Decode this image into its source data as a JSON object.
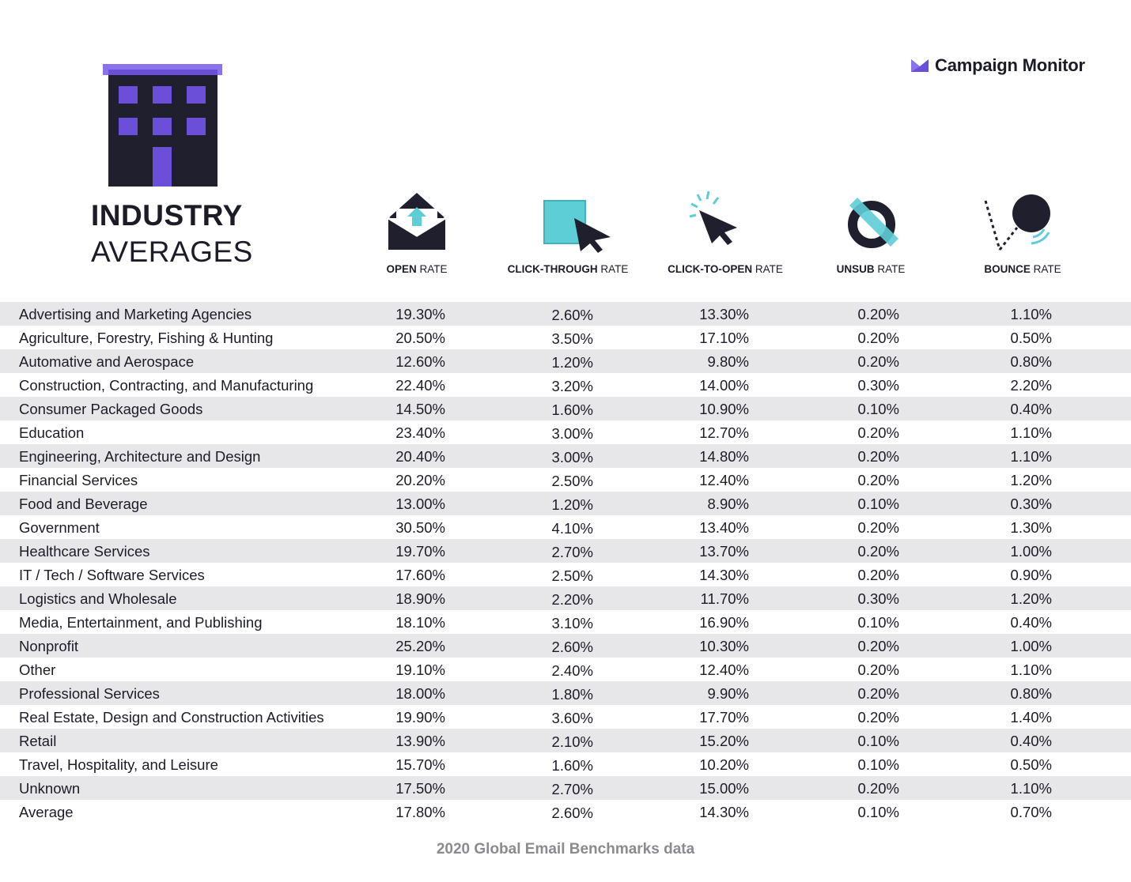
{
  "header": {
    "title_bold": "INDUSTRY",
    "title_light": "AVERAGES",
    "brand": "Campaign Monitor"
  },
  "columns": [
    {
      "bold": "OPEN",
      "rest": " RATE",
      "icon": "envelope-icon"
    },
    {
      "bold": "CLICK-THROUGH",
      "rest": " RATE",
      "icon": "cursor-square-icon"
    },
    {
      "bold": "CLICK-TO-OPEN",
      "rest": " RATE",
      "icon": "click-cursor-icon"
    },
    {
      "bold": "UNSUB",
      "rest": " RATE",
      "icon": "unsubscribe-ring-icon"
    },
    {
      "bold": "BOUNCE",
      "rest": " RATE",
      "icon": "bounce-ball-icon"
    }
  ],
  "colors": {
    "accent": "#6b4fd8",
    "dark": "#1c1c28",
    "teal": "#5dcdd6",
    "stripe": "#e7e7ea"
  },
  "chart_data": {
    "type": "table",
    "title": "INDUSTRY AVERAGES",
    "source": "2020 Global Email Benchmarks data",
    "columns": [
      "OPEN RATE",
      "CLICK-THROUGH RATE",
      "CLICK-TO-OPEN RATE",
      "UNSUB RATE",
      "BOUNCE RATE"
    ],
    "rows": [
      [
        "Advertising and Marketing Agencies",
        "19.30%",
        "2.60%",
        "13.30%",
        "0.20%",
        "1.10%"
      ],
      [
        "Agriculture, Forestry, Fishing & Hunting",
        "20.50%",
        "3.50%",
        "17.10%",
        "0.20%",
        "0.50%"
      ],
      [
        "Automative and Aerospace",
        "12.60%",
        "1.20%",
        "9.80%",
        "0.20%",
        "0.80%"
      ],
      [
        "Construction, Contracting, and Manufacturing",
        "22.40%",
        "3.20%",
        "14.00%",
        "0.30%",
        "2.20%"
      ],
      [
        "Consumer Packaged Goods",
        "14.50%",
        "1.60%",
        "10.90%",
        "0.10%",
        "0.40%"
      ],
      [
        "Education",
        "23.40%",
        "3.00%",
        "12.70%",
        "0.20%",
        "1.10%"
      ],
      [
        "Engineering, Architecture and Design",
        "20.40%",
        "3.00%",
        "14.80%",
        "0.20%",
        "1.10%"
      ],
      [
        "Financial Services",
        "20.20%",
        "2.50%",
        "12.40%",
        "0.20%",
        "1.20%"
      ],
      [
        "Food and Beverage",
        "13.00%",
        "1.20%",
        "8.90%",
        "0.10%",
        "0.30%"
      ],
      [
        "Government",
        "30.50%",
        "4.10%",
        "13.40%",
        "0.20%",
        "1.30%"
      ],
      [
        "Healthcare Services",
        "19.70%",
        "2.70%",
        "13.70%",
        "0.20%",
        "1.00%"
      ],
      [
        "IT / Tech / Software Services",
        "17.60%",
        "2.50%",
        "14.30%",
        "0.20%",
        "0.90%"
      ],
      [
        "Logistics and Wholesale",
        "18.90%",
        "2.20%",
        "11.70%",
        "0.30%",
        "1.20%"
      ],
      [
        "Media, Entertainment, and Publishing",
        "18.10%",
        "3.10%",
        "16.90%",
        "0.10%",
        "0.40%"
      ],
      [
        "Nonprofit",
        "25.20%",
        "2.60%",
        "10.30%",
        "0.20%",
        "1.00%"
      ],
      [
        "Other",
        "19.10%",
        "2.40%",
        "12.40%",
        "0.20%",
        "1.10%"
      ],
      [
        "Professional Services",
        "18.00%",
        "1.80%",
        "9.90%",
        "0.20%",
        "0.80%"
      ],
      [
        "Real Estate, Design and Construction Activities",
        "19.90%",
        "3.60%",
        "17.70%",
        "0.20%",
        "1.40%"
      ],
      [
        "Retail",
        "13.90%",
        "2.10%",
        "15.20%",
        "0.10%",
        "0.40%"
      ],
      [
        "Travel, Hospitality, and Leisure",
        "15.70%",
        "1.60%",
        "10.20%",
        "0.10%",
        "0.50%"
      ],
      [
        "Unknown",
        "17.50%",
        "2.70%",
        "15.00%",
        "0.20%",
        "1.10%"
      ],
      [
        "Average",
        "17.80%",
        "2.60%",
        "14.30%",
        "0.10%",
        "0.70%"
      ]
    ]
  }
}
